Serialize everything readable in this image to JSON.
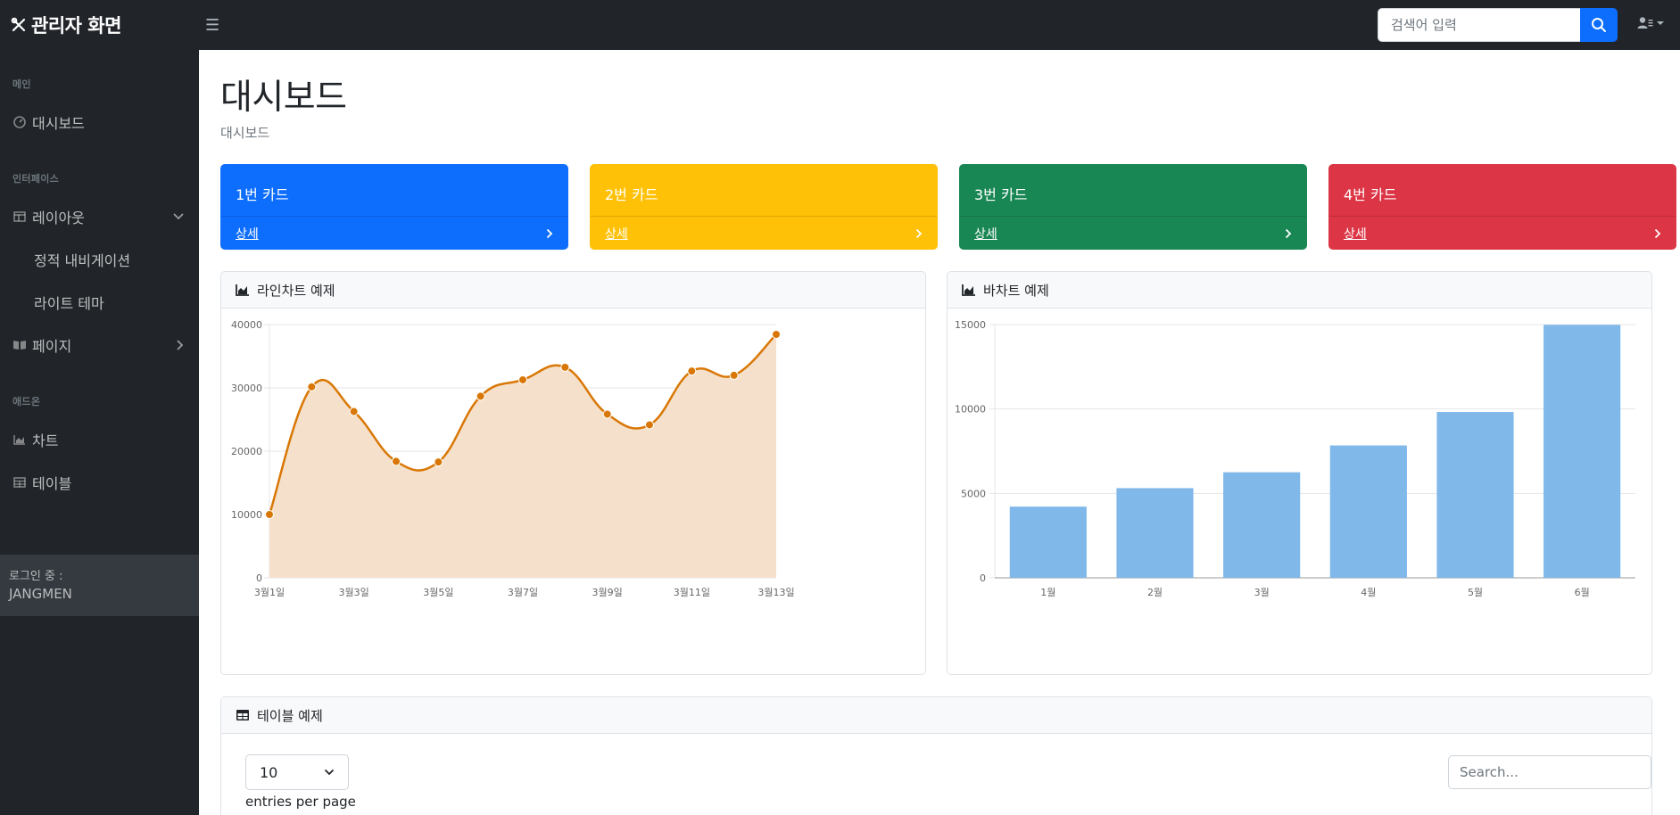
{
  "app": {
    "title": "관리자 화면"
  },
  "topbar": {
    "search_placeholder": "검색어 입력"
  },
  "sidebar": {
    "heading_main": "메인",
    "dashboard": "대시보드",
    "heading_interface": "인터페이스",
    "layout": "레이아웃",
    "layout_sub1": "정적 내비게이션",
    "layout_sub2": "라이트 테마",
    "pages": "페이지",
    "heading_addon": "애드온",
    "charts": "차트",
    "tables": "테이블",
    "footer_label": "로그인 중 :",
    "footer_user": "JANGMEN"
  },
  "page": {
    "title": "대시보드",
    "breadcrumb": "대시보드"
  },
  "cards": [
    {
      "title": "1번 카드",
      "link": "상세",
      "color": "#0d6efd"
    },
    {
      "title": "2번 카드",
      "link": "상세",
      "color": "#ffc107"
    },
    {
      "title": "3번 카드",
      "link": "상세",
      "color": "#198754"
    },
    {
      "title": "4번 카드",
      "link": "상세",
      "color": "#dc3545"
    }
  ],
  "line_panel": {
    "title": "라인차트 예제"
  },
  "bar_panel": {
    "title": "바차트 예제"
  },
  "table_panel": {
    "title": "테이블 예제",
    "entries_value": "10",
    "entries_label": "entries per page",
    "search_placeholder": "Search..."
  },
  "chart_data": [
    {
      "type": "area",
      "x": [
        "3월1일",
        "3월2일",
        "3월3일",
        "3월4일",
        "3월5일",
        "3월6일",
        "3월7일",
        "3월8일",
        "3월9일",
        "3월10일",
        "3월11일",
        "3월12일",
        "3월13일"
      ],
      "x_tick_labels": [
        "3월1일",
        "3월3일",
        "3월5일",
        "3월7일",
        "3월9일",
        "3월11일",
        "3월13일"
      ],
      "values": [
        10000,
        30162,
        26263,
        18394,
        18287,
        28682,
        31274,
        33259,
        25849,
        24159,
        32651,
        31984,
        38451
      ],
      "ylim": [
        0,
        40000
      ],
      "y_ticks": [
        0,
        10000,
        20000,
        30000,
        40000
      ],
      "line_color": "#d97706",
      "fill_color": "#f5e1cb",
      "grid": true
    },
    {
      "type": "bar",
      "categories": [
        "1월",
        "2월",
        "3월",
        "4월",
        "5월",
        "6월"
      ],
      "values": [
        4215,
        5312,
        6251,
        7841,
        9821,
        14984
      ],
      "ylim": [
        0,
        15000
      ],
      "y_ticks": [
        0,
        5000,
        10000,
        15000
      ],
      "bar_color": "#80b8ea",
      "grid": true
    }
  ]
}
